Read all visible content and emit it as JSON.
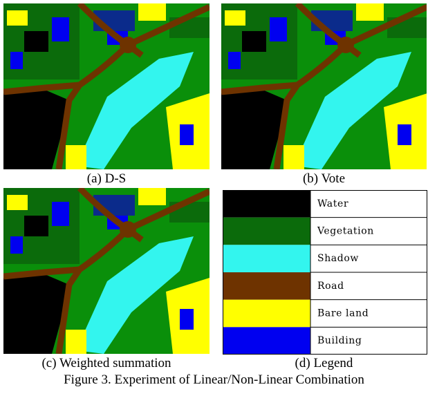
{
  "panels": [
    {
      "caption": "(a) D-S"
    },
    {
      "caption": "(b) Vote"
    },
    {
      "caption": "(c) Weighted summation"
    }
  ],
  "legend": {
    "caption": "(d) Legend",
    "items": [
      {
        "label": "Water",
        "color": "#000000"
      },
      {
        "label": "Vegetation",
        "color": "#0b6b0b"
      },
      {
        "label": "Shadow",
        "color": "#33f5ee"
      },
      {
        "label": "Road",
        "color": "#6e3300"
      },
      {
        "label": "Bare land",
        "color": "#ffff00"
      },
      {
        "label": "Building",
        "color": "#0000f0"
      }
    ]
  },
  "figure_caption": "Figure 3. Experiment of Linear/Non-Linear Combination"
}
